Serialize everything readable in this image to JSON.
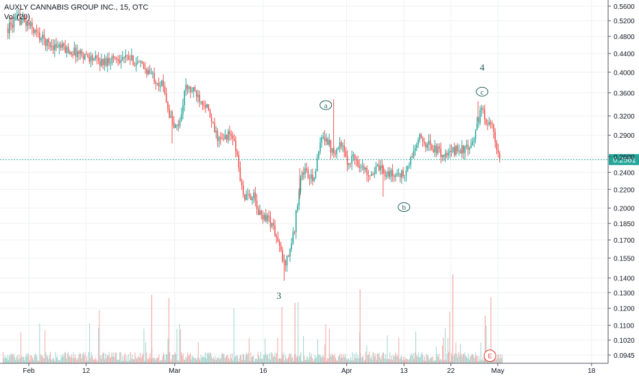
{
  "header": {
    "symbol_line": "AUXLY CANNABIS GROUP INC., 15, OTC",
    "volume_line": "Vol (20)"
  },
  "colors": {
    "up": "#26a69a",
    "down": "#ef5350",
    "up_volume": "#9fd3cc",
    "down_volume": "#f4a9a7",
    "grid": "#eef0f3",
    "price_line": "#26a69a",
    "annotation": "#1b5e57",
    "earnings": "#e53935"
  },
  "chart_data": {
    "type": "candlestick",
    "title": "AUXLY CANNABIS GROUP INC., 15, OTC",
    "scale": "log",
    "grid": true,
    "y_ticks": [
      "0.5600",
      "0.5200",
      "0.4800",
      "0.4400",
      "0.4000",
      "0.3600",
      "0.3200",
      "0.2900",
      "0.2600",
      "0.2400",
      "0.2200",
      "0.2000",
      "0.1850",
      "0.1700",
      "0.1550",
      "0.1400",
      "0.1300",
      "0.1200",
      "0.1100",
      "0.1020",
      "0.0945"
    ],
    "y_tick_values": [
      0.56,
      0.52,
      0.48,
      0.44,
      0.4,
      0.36,
      0.32,
      0.29,
      0.26,
      0.24,
      0.22,
      0.2,
      0.185,
      0.17,
      0.155,
      0.14,
      0.13,
      0.12,
      0.11,
      0.102,
      0.0945
    ],
    "x_ticks": [
      "Feb",
      "12",
      "Mar",
      "16",
      "Apr",
      "13",
      "22",
      "May",
      "18"
    ],
    "x_tick_days": [
      1,
      12,
      29,
      46,
      62,
      73,
      82,
      91,
      109
    ],
    "last_price": {
      "label": "0.2561",
      "value": 0.2561
    },
    "price_path": [
      {
        "day": -3,
        "price": 0.5
      },
      {
        "day": -1,
        "price": 0.525
      },
      {
        "day": 1,
        "price": 0.51
      },
      {
        "day": 3,
        "price": 0.48
      },
      {
        "day": 5,
        "price": 0.46
      },
      {
        "day": 7,
        "price": 0.455
      },
      {
        "day": 9,
        "price": 0.445
      },
      {
        "day": 11,
        "price": 0.44
      },
      {
        "day": 13,
        "price": 0.43
      },
      {
        "day": 15,
        "price": 0.42
      },
      {
        "day": 17,
        "price": 0.43
      },
      {
        "day": 19,
        "price": 0.43
      },
      {
        "day": 21,
        "price": 0.425
      },
      {
        "day": 23,
        "price": 0.41
      },
      {
        "day": 25,
        "price": 0.39
      },
      {
        "day": 27,
        "price": 0.37
      },
      {
        "day": 28,
        "price": 0.32
      },
      {
        "day": 29,
        "price": 0.3
      },
      {
        "day": 30,
        "price": 0.31
      },
      {
        "day": 31,
        "price": 0.37
      },
      {
        "day": 33,
        "price": 0.36
      },
      {
        "day": 35,
        "price": 0.34
      },
      {
        "day": 36,
        "price": 0.31
      },
      {
        "day": 37,
        "price": 0.29
      },
      {
        "day": 38,
        "price": 0.28
      },
      {
        "day": 39,
        "price": 0.29
      },
      {
        "day": 40,
        "price": 0.29
      },
      {
        "day": 41,
        "price": 0.26
      },
      {
        "day": 42,
        "price": 0.215
      },
      {
        "day": 43,
        "price": 0.21
      },
      {
        "day": 44,
        "price": 0.215
      },
      {
        "day": 45,
        "price": 0.195
      },
      {
        "day": 47,
        "price": 0.19
      },
      {
        "day": 48,
        "price": 0.18
      },
      {
        "day": 49,
        "price": 0.165
      },
      {
        "day": 50,
        "price": 0.15
      },
      {
        "day": 51,
        "price": 0.16
      },
      {
        "day": 52,
        "price": 0.18
      },
      {
        "day": 53,
        "price": 0.23
      },
      {
        "day": 54,
        "price": 0.245
      },
      {
        "day": 55,
        "price": 0.23
      },
      {
        "day": 56,
        "price": 0.24
      },
      {
        "day": 57,
        "price": 0.28
      },
      {
        "day": 58,
        "price": 0.29
      },
      {
        "day": 59,
        "price": 0.27
      },
      {
        "day": 60,
        "price": 0.27
      },
      {
        "day": 61,
        "price": 0.28
      },
      {
        "day": 62,
        "price": 0.25
      },
      {
        "day": 63,
        "price": 0.26
      },
      {
        "day": 64,
        "price": 0.255
      },
      {
        "day": 65,
        "price": 0.245
      },
      {
        "day": 66,
        "price": 0.24
      },
      {
        "day": 67,
        "price": 0.24
      },
      {
        "day": 68,
        "price": 0.245
      },
      {
        "day": 69,
        "price": 0.24
      },
      {
        "day": 70,
        "price": 0.24
      },
      {
        "day": 71,
        "price": 0.235
      },
      {
        "day": 72,
        "price": 0.24
      },
      {
        "day": 73,
        "price": 0.235
      },
      {
        "day": 74,
        "price": 0.25
      },
      {
        "day": 75,
        "price": 0.27
      },
      {
        "day": 76,
        "price": 0.285
      },
      {
        "day": 77,
        "price": 0.28
      },
      {
        "day": 78,
        "price": 0.275
      },
      {
        "day": 79,
        "price": 0.27
      },
      {
        "day": 80,
        "price": 0.265
      },
      {
        "day": 81,
        "price": 0.26
      },
      {
        "day": 82,
        "price": 0.265
      },
      {
        "day": 83,
        "price": 0.27
      },
      {
        "day": 84,
        "price": 0.27
      },
      {
        "day": 85,
        "price": 0.27
      },
      {
        "day": 86,
        "price": 0.27
      },
      {
        "day": 87,
        "price": 0.31
      },
      {
        "day": 88,
        "price": 0.33
      },
      {
        "day": 89,
        "price": 0.31
      },
      {
        "day": 90,
        "price": 0.3
      },
      {
        "day": 91,
        "price": 0.26
      },
      {
        "day": 91.5,
        "price": 0.256
      }
    ],
    "wave_labels": [
      {
        "text": "3",
        "day": 49,
        "price": 0.128,
        "circled": false
      },
      {
        "text": "a",
        "day": 58,
        "price": 0.338,
        "circled": true
      },
      {
        "text": "b",
        "day": 73,
        "price": 0.201,
        "circled": true
      },
      {
        "text": "c",
        "day": 88,
        "price": 0.362,
        "circled": true
      },
      {
        "text": "4",
        "day": 88,
        "price": 0.41,
        "circled": false
      }
    ],
    "earnings_marker": {
      "text": "E",
      "day": 89.5
    },
    "volume": {
      "min_day": -4,
      "max_day": 91.8
    }
  }
}
